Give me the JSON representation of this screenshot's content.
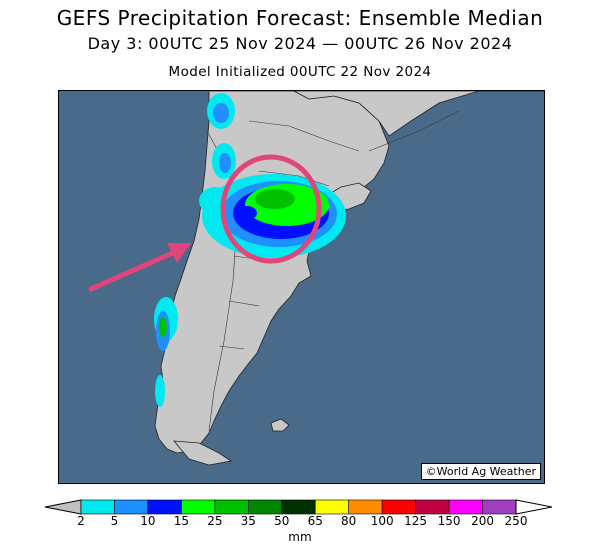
{
  "header": {
    "title": "GEFS Precipitation Forecast: Ensemble Median",
    "subtitle": "Day 3: 00UTC 25 Nov 2024 — 00UTC 26 Nov 2024",
    "initialized": "Model Initialized 00UTC 22 Nov 2024"
  },
  "map": {
    "credit": "©World Ag Weather",
    "ocean_color": "#4a6a8a",
    "land_color": "#c8c8c8",
    "annotation_color": "#e0457b"
  },
  "legend": {
    "units": "mm",
    "ticks": [
      "2",
      "5",
      "10",
      "15",
      "25",
      "35",
      "50",
      "65",
      "80",
      "100",
      "125",
      "150",
      "200",
      "250"
    ],
    "colors": [
      "#00e8f0",
      "#1e90ff",
      "#0010ff",
      "#00ff00",
      "#00c000",
      "#008800",
      "#003000",
      "#ffff00",
      "#ff8c00",
      "#ff0000",
      "#c00040",
      "#ff00ff",
      "#a040c0"
    ],
    "under_color": "#c0c0c0",
    "over_color": "#ffffff"
  }
}
